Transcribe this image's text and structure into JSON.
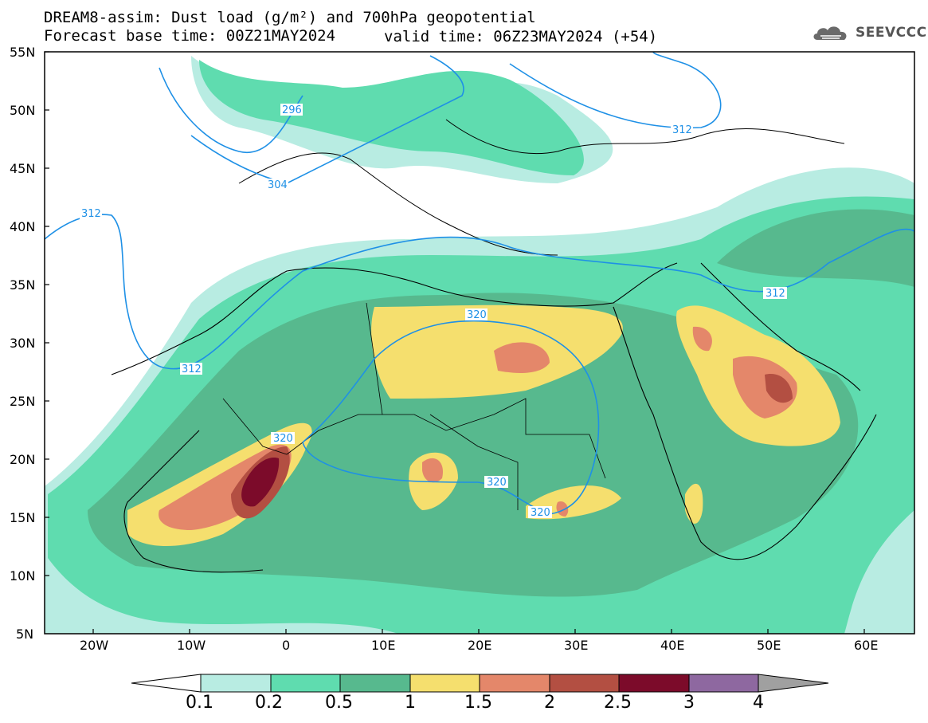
{
  "title": {
    "line1": "DREAM8-assim: Dust load (g/m²) and 700hPa geopotential",
    "line2": "Forecast base time: 00Z21MAY2024",
    "valid": "valid time: 06Z23MAY2024 (+54)"
  },
  "logo": {
    "text": "SEEVCCC",
    "icon": "cloud-logo-icon"
  },
  "axes": {
    "lat_ticks": [
      "55N",
      "50N",
      "45N",
      "40N",
      "35N",
      "30N",
      "25N",
      "20N",
      "15N",
      "10N",
      "5N"
    ],
    "lon_ticks": [
      "20W",
      "10W",
      "0",
      "10E",
      "20E",
      "30E",
      "40E",
      "50E",
      "60E"
    ],
    "lat_range": [
      5,
      55
    ],
    "lon_range": [
      -25,
      65
    ]
  },
  "contours": {
    "labels": [
      "296",
      "304",
      "312",
      "312",
      "312",
      "312",
      "320",
      "320",
      "320",
      "320"
    ]
  },
  "colorbar": {
    "labels": [
      "0.1",
      "0.2",
      "0.5",
      "1",
      "1.5",
      "2",
      "2.5",
      "3",
      "4"
    ],
    "colors": [
      "#ffffff",
      "#b8ece2",
      "#5fdcaf",
      "#57b98e",
      "#f5df6e",
      "#e4876a",
      "#b34f42",
      "#7c0b2a",
      "#8e68a0",
      "#a0a0a0"
    ]
  }
}
